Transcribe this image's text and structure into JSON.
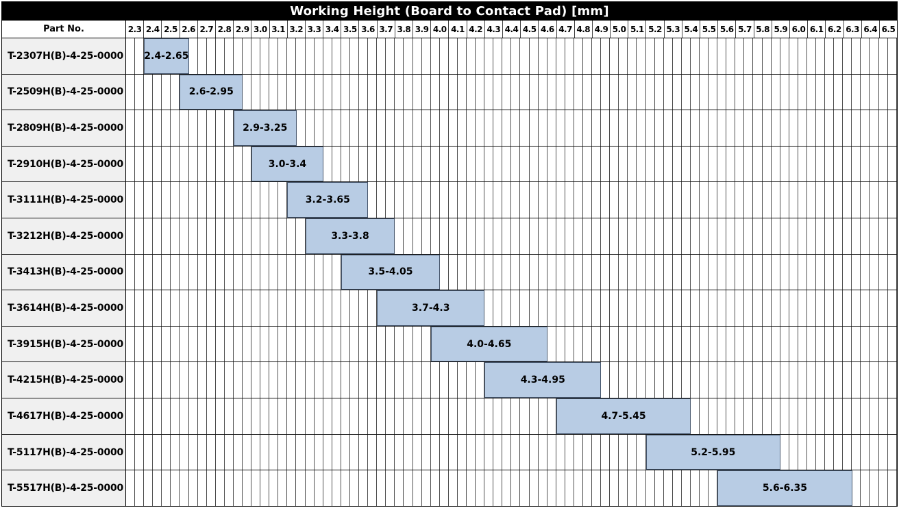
{
  "title": "Working Height (Board to Contact Pad) [mm]",
  "columns": {
    "part_no_label": "Part No."
  },
  "colors": {
    "bar_fill": "#b8cce4",
    "bar_border": "#44546a",
    "grid_line": "#4d4d4d",
    "row_separator": "#111111",
    "part_cell_bg": "#f0f0f0",
    "title_bg": "#000000",
    "title_text": "#ffffff"
  },
  "chart_data": {
    "type": "bar",
    "subtype": "horizontal-range",
    "title": "Working Height (Board to Contact Pad) [mm]",
    "axis": {
      "min": 2.3,
      "max": 6.6,
      "major_step": 0.1,
      "minor_step": 0.05,
      "unit": "mm"
    },
    "tick_labels": [
      "2.3",
      "2.4",
      "2.5",
      "2.6",
      "2.7",
      "2.8",
      "2.9",
      "3.0",
      "3.1",
      "3.2",
      "3.3",
      "3.4",
      "3.5",
      "3.6",
      "3.7",
      "3.8",
      "3.9",
      "4.0",
      "4.1",
      "4.2",
      "4.3",
      "4.4",
      "4.5",
      "4.6",
      "4.7",
      "4.8",
      "4.9",
      "5.0",
      "5.1",
      "5.2",
      "5.3",
      "5.4",
      "5.5",
      "5.6",
      "5.7",
      "5.8",
      "5.9",
      "6.0",
      "6.1",
      "6.2",
      "6.3",
      "6.4",
      "6.5"
    ],
    "rows": [
      {
        "part_no": "T-2307H(B)-4-25-0000",
        "range_label": "2.4-2.65",
        "start": 2.4,
        "end": 2.65
      },
      {
        "part_no": "T-2509H(B)-4-25-0000",
        "range_label": "2.6-2.95",
        "start": 2.6,
        "end": 2.95
      },
      {
        "part_no": "T-2809H(B)-4-25-0000",
        "range_label": "2.9-3.25",
        "start": 2.9,
        "end": 3.25
      },
      {
        "part_no": "T-2910H(B)-4-25-0000",
        "range_label": "3.0-3.4",
        "start": 3.0,
        "end": 3.4
      },
      {
        "part_no": "T-3111H(B)-4-25-0000",
        "range_label": "3.2-3.65",
        "start": 3.2,
        "end": 3.65
      },
      {
        "part_no": "T-3212H(B)-4-25-0000",
        "range_label": "3.3-3.8",
        "start": 3.3,
        "end": 3.8
      },
      {
        "part_no": "T-3413H(B)-4-25-0000",
        "range_label": "3.5-4.05",
        "start": 3.5,
        "end": 4.05
      },
      {
        "part_no": "T-3614H(B)-4-25-0000",
        "range_label": "3.7-4.3",
        "start": 3.7,
        "end": 4.3
      },
      {
        "part_no": "T-3915H(B)-4-25-0000",
        "range_label": "4.0-4.65",
        "start": 4.0,
        "end": 4.65
      },
      {
        "part_no": "T-4215H(B)-4-25-0000",
        "range_label": "4.3-4.95",
        "start": 4.3,
        "end": 4.95
      },
      {
        "part_no": "T-4617H(B)-4-25-0000",
        "range_label": "4.7-5.45",
        "start": 4.7,
        "end": 5.45
      },
      {
        "part_no": "T-5117H(B)-4-25-0000",
        "range_label": "5.2-5.95",
        "start": 5.2,
        "end": 5.95
      },
      {
        "part_no": "T-5517H(B)-4-25-0000",
        "range_label": "5.6-6.35",
        "start": 5.6,
        "end": 6.35
      }
    ]
  }
}
